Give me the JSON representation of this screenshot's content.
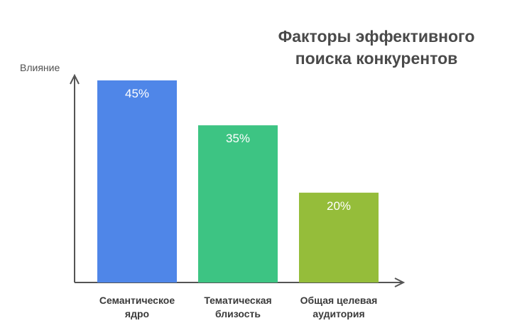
{
  "chart_data": {
    "type": "bar",
    "title_lines": [
      "Факторы эффективного",
      "поиска конкурентов"
    ],
    "ylabel": "Влияние",
    "xlabel": "",
    "categories": [
      [
        "Семантическое",
        "ядро"
      ],
      [
        "Тематическая",
        "близость"
      ],
      [
        "Общая целевая",
        "аудитория"
      ]
    ],
    "values": [
      45,
      35,
      20
    ],
    "value_labels": [
      "45%",
      "35%",
      "20%"
    ],
    "colors": [
      "#4f86e8",
      "#3dc483",
      "#95bd3a"
    ],
    "ylim": [
      0,
      45
    ],
    "grid": false,
    "legend": "none"
  }
}
